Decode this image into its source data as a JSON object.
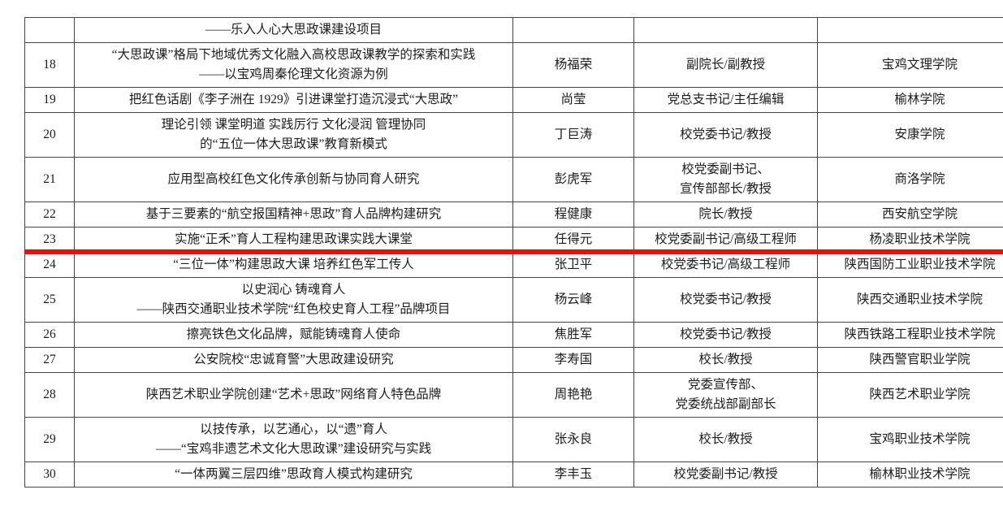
{
  "page": {
    "background_color": "#ffffff",
    "text_color": "#1c1c1c",
    "table_border_color": "#454545"
  },
  "table": {
    "highlight_color": "#e81109",
    "highlight_row_no": "23",
    "columns": [
      {
        "key": "no"
      },
      {
        "key": "title"
      },
      {
        "key": "name"
      },
      {
        "key": "position"
      },
      {
        "key": "institution"
      }
    ],
    "rows": [
      {
        "no": "",
        "title": "——乐入人心大思政课建设项目",
        "name": "",
        "position": "",
        "institution": ""
      },
      {
        "no": "18",
        "title": "“大思政课”格局下地域优秀文化融入高校思政课教学的探索和实践\n——以宝鸡周秦伦理文化资源为例",
        "name": "杨福荣",
        "position": "副院长/副教授",
        "institution": "宝鸡文理学院"
      },
      {
        "no": "19",
        "title": "把红色话剧《李子洲在 1929》引进课堂打造沉浸式“大思政”",
        "name": "尚莹",
        "position": "党总支书记/主任编辑",
        "institution": "榆林学院"
      },
      {
        "no": "20",
        "title": "理论引领  课堂明道  实践厉行  文化浸润  管理协同\n的“五位一体大思政课”教育新模式",
        "name": "丁巨涛",
        "position": "校党委书记/教授",
        "institution": "安康学院"
      },
      {
        "no": "21",
        "title": "应用型高校红色文化传承创新与协同育人研究",
        "name": "彭虎军",
        "position": "校党委副书记、\n宣传部部长/教授",
        "institution": "商洛学院"
      },
      {
        "no": "22",
        "title": "基于三要素的“航空报国精神+思政”育人品牌构建研究",
        "name": "程健康",
        "position": "院长/教授",
        "institution": "西安航空学院"
      },
      {
        "no": "23",
        "title": "实施“正禾”育人工程构建思政课实践大课堂",
        "name": "任得元",
        "position": "校党委副书记/高级工程师",
        "institution": "杨凌职业技术学院"
      },
      {
        "no": "24",
        "title": "“三位一体”构建思政大课  培养红色军工传人",
        "name": "张卫平",
        "position": "校党委书记/高级工程师",
        "institution": "陕西国防工业职业技术学院"
      },
      {
        "no": "25",
        "title": "以史润心  铸魂育人\n——陕西交通职业技术学院“红色校史育人工程”品牌项目",
        "name": "杨云峰",
        "position": "校党委书记/教授",
        "institution": "陕西交通职业技术学院"
      },
      {
        "no": "26",
        "title": "擦亮铁色文化品牌，赋能铸魂育人使命",
        "name": "焦胜军",
        "position": "校党委书记/教授",
        "institution": "陕西铁路工程职业技术学院"
      },
      {
        "no": "27",
        "title": "公安院校“忠诚育警”大思政建设研究",
        "name": "李寿国",
        "position": "校长/教授",
        "institution": "陕西警官职业学院"
      },
      {
        "no": "28",
        "title": "陕西艺术职业学院创建“艺术+思政”网络育人特色品牌",
        "name": "周艳艳",
        "position": "党委宣传部、\n党委统战部副部长",
        "institution": "陕西艺术职业学院"
      },
      {
        "no": "29",
        "title": "以技传承，以艺通心，以“遗”育人\n——“宝鸡非遗艺术文化大思政课”建设研究与实践",
        "name": "张永良",
        "position": "校长/教授",
        "institution": "宝鸡职业技术学院"
      },
      {
        "no": "30",
        "title": "“一体两翼三层四维”思政育人模式构建研究",
        "name": "李丰玉",
        "position": "校党委副书记/教授",
        "institution": "榆林职业技术学院"
      }
    ]
  }
}
